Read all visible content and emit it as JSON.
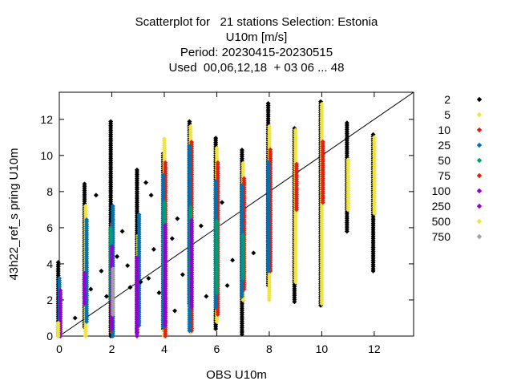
{
  "title_lines": [
    "Scatterplot for   21 stations Selection: Estonia",
    "U10m [m/s]",
    "Period: 20230415-20230515",
    "Used  00,06,12,18  + 03 06 ... 48"
  ],
  "chart_data": {
    "type": "scatter",
    "xlabel": "OBS U10m",
    "ylabel": "43h22_ref_s pring U10m",
    "xlim": [
      0,
      13.5
    ],
    "ylim": [
      0,
      13.5
    ],
    "xticks": [
      0,
      2,
      4,
      6,
      8,
      10,
      12
    ],
    "yticks": [
      0,
      2,
      4,
      6,
      8,
      10,
      12
    ],
    "diagonal": true,
    "legend_position": "right",
    "legend": [
      {
        "label": "2",
        "color": "#000000"
      },
      {
        "label": "5",
        "color": "#f0e442"
      },
      {
        "label": "10",
        "color": "#e51e10"
      },
      {
        "label": "25",
        "color": "#0072b2"
      },
      {
        "label": "50",
        "color": "#009e73"
      },
      {
        "label": "75",
        "color": "#e51e10"
      },
      {
        "label": "100",
        "color": "#9400d3"
      },
      {
        "label": "250",
        "color": "#9400d3"
      },
      {
        "label": "500",
        "color": "#f0e442"
      },
      {
        "label": "750",
        "color": "#a0a0a0"
      }
    ],
    "columns": [
      {
        "x": 0,
        "segments": [
          {
            "c": "#000000",
            "y0": 0.0,
            "y1": 4.1
          },
          {
            "c": "#0072b2",
            "y0": 0.2,
            "y1": 3.3
          },
          {
            "c": "#9400d3",
            "y0": 0.0,
            "y1": 2.6
          },
          {
            "c": "#f0e442",
            "y0": 0.0,
            "y1": 0.8
          }
        ]
      },
      {
        "x": 1,
        "segments": [
          {
            "c": "#000000",
            "y0": 0.5,
            "y1": 8.5
          },
          {
            "c": "#f0e442",
            "y0": 0.0,
            "y1": 7.2
          },
          {
            "c": "#0072b2",
            "y0": 0.8,
            "y1": 6.5
          },
          {
            "c": "#9400d3",
            "y0": 1.8,
            "y1": 3.5
          }
        ]
      },
      {
        "x": 2,
        "segments": [
          {
            "c": "#000000",
            "y0": 0.0,
            "y1": 11.9
          },
          {
            "c": "#e51e10",
            "y0": 0.2,
            "y1": 6.2
          },
          {
            "c": "#0072b2",
            "y0": 0.0,
            "y1": 7.2
          },
          {
            "c": "#009e73",
            "y0": 2.0,
            "y1": 6.0
          },
          {
            "c": "#9400d3",
            "y0": 0.4,
            "y1": 5.0
          },
          {
            "c": "#a0a0a0",
            "y0": 1.2,
            "y1": 3.8
          }
        ]
      },
      {
        "x": 3,
        "segments": [
          {
            "c": "#000000",
            "y0": 0.2,
            "y1": 9.2
          },
          {
            "c": "#f0e442",
            "y0": 0.4,
            "y1": 5.6
          },
          {
            "c": "#0072b2",
            "y0": 0.6,
            "y1": 6.8
          },
          {
            "c": "#9400d3",
            "y0": 0.0,
            "y1": 4.4
          }
        ]
      },
      {
        "x": 4,
        "segments": [
          {
            "c": "#000000",
            "y0": 0.4,
            "y1": 10.2
          },
          {
            "c": "#f0e442",
            "y0": 0.0,
            "y1": 11.0
          },
          {
            "c": "#e51e10",
            "y0": 0.0,
            "y1": 9.6
          },
          {
            "c": "#0072b2",
            "y0": 0.5,
            "y1": 9.0
          },
          {
            "c": "#009e73",
            "y0": 3.2,
            "y1": 7.5
          },
          {
            "c": "#9400d3",
            "y0": 0.6,
            "y1": 6.2
          }
        ]
      },
      {
        "x": 5,
        "segments": [
          {
            "c": "#000000",
            "y0": 1.8,
            "y1": 11.9
          },
          {
            "c": "#f0e442",
            "y0": 0.2,
            "y1": 11.6
          },
          {
            "c": "#e51e10",
            "y0": 0.3,
            "y1": 10.8
          },
          {
            "c": "#0072b2",
            "y0": 0.3,
            "y1": 10.6
          },
          {
            "c": "#009e73",
            "y0": 1.6,
            "y1": 7.2
          },
          {
            "c": "#9400d3",
            "y0": 1.6,
            "y1": 6.4
          }
        ]
      },
      {
        "x": 6,
        "segments": [
          {
            "c": "#000000",
            "y0": 0.4,
            "y1": 11.0
          },
          {
            "c": "#f0e442",
            "y0": 0.8,
            "y1": 10.4
          },
          {
            "c": "#e51e10",
            "y0": 1.2,
            "y1": 9.6
          },
          {
            "c": "#0072b2",
            "y0": 1.6,
            "y1": 8.6
          },
          {
            "c": "#009e73",
            "y0": 2.4,
            "y1": 6.4
          }
        ]
      },
      {
        "x": 7,
        "segments": [
          {
            "c": "#000000",
            "y0": 0.1,
            "y1": 10.3
          },
          {
            "c": "#f0e442",
            "y0": 2.0,
            "y1": 9.6
          },
          {
            "c": "#e51e10",
            "y0": 2.6,
            "y1": 8.8
          },
          {
            "c": "#0072b2",
            "y0": 2.2,
            "y1": 8.4
          },
          {
            "c": "#009e73",
            "y0": 3.2,
            "y1": 5.6
          }
        ]
      },
      {
        "x": 8,
        "segments": [
          {
            "c": "#000000",
            "y0": 2.8,
            "y1": 12.9
          },
          {
            "c": "#f0e442",
            "y0": 2.0,
            "y1": 11.6
          },
          {
            "c": "#e51e10",
            "y0": 3.6,
            "y1": 10.4
          },
          {
            "c": "#0072b2",
            "y0": 3.6,
            "y1": 9.6
          }
        ]
      },
      {
        "x": 9,
        "segments": [
          {
            "c": "#000000",
            "y0": 1.9,
            "y1": 11.5
          },
          {
            "c": "#f0e442",
            "y0": 3.0,
            "y1": 11.4
          },
          {
            "c": "#e51e10",
            "y0": 7.0,
            "y1": 9.6
          }
        ]
      },
      {
        "x": 10,
        "segments": [
          {
            "c": "#000000",
            "y0": 1.7,
            "y1": 13.0
          },
          {
            "c": "#f0e442",
            "y0": 1.8,
            "y1": 12.9
          },
          {
            "c": "#e51e10",
            "y0": 7.4,
            "y1": 10.8
          }
        ]
      },
      {
        "x": 11,
        "segments": [
          {
            "c": "#000000",
            "y0": 5.8,
            "y1": 11.9
          },
          {
            "c": "#f0e442",
            "y0": 7.0,
            "y1": 9.8
          }
        ]
      },
      {
        "x": 12,
        "segments": [
          {
            "c": "#000000",
            "y0": 3.6,
            "y1": 11.2
          },
          {
            "c": "#f0e442",
            "y0": 6.8,
            "y1": 11.0
          }
        ]
      }
    ],
    "scatter_points": [
      {
        "x": 0.6,
        "y": 1.0
      },
      {
        "x": 1.2,
        "y": 2.6
      },
      {
        "x": 1.4,
        "y": 7.8
      },
      {
        "x": 1.6,
        "y": 3.6
      },
      {
        "x": 1.8,
        "y": 2.2
      },
      {
        "x": 2.4,
        "y": 5.8
      },
      {
        "x": 2.6,
        "y": 3.9
      },
      {
        "x": 2.7,
        "y": 2.7
      },
      {
        "x": 3.3,
        "y": 8.5
      },
      {
        "x": 3.5,
        "y": 7.8
      },
      {
        "x": 3.4,
        "y": 3.2
      },
      {
        "x": 3.6,
        "y": 4.8
      },
      {
        "x": 3.8,
        "y": 2.4
      },
      {
        "x": 4.3,
        "y": 5.4
      },
      {
        "x": 4.5,
        "y": 6.5
      },
      {
        "x": 4.4,
        "y": 1.4
      },
      {
        "x": 4.7,
        "y": 3.4
      },
      {
        "x": 5.4,
        "y": 6.1
      },
      {
        "x": 5.6,
        "y": 2.2
      },
      {
        "x": 6.2,
        "y": 7.4
      },
      {
        "x": 6.4,
        "y": 2.8
      },
      {
        "x": 6.6,
        "y": 4.2
      },
      {
        "x": 7.4,
        "y": 4.6
      },
      {
        "x": 3.1,
        "y": 3.0
      },
      {
        "x": 2.2,
        "y": 4.4
      }
    ]
  }
}
